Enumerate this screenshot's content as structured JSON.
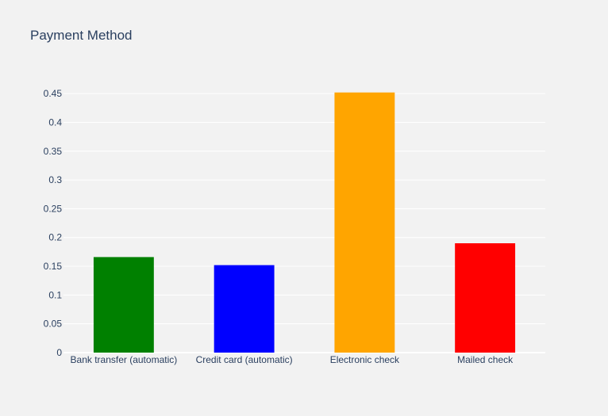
{
  "chart_data": {
    "type": "bar",
    "title": "Payment Method",
    "categories": [
      "Bank transfer (automatic)",
      "Credit card (automatic)",
      "Electronic check",
      "Mailed check"
    ],
    "values": [
      0.166,
      0.152,
      0.452,
      0.19
    ],
    "colors": [
      "#008000",
      "#0000ff",
      "#ffa500",
      "#ff0000"
    ],
    "xlabel": "",
    "ylabel": "",
    "ylim": [
      0,
      0.475
    ],
    "yticks": [
      0,
      0.05,
      0.1,
      0.15,
      0.2,
      0.25,
      0.3,
      0.35,
      0.4,
      0.45
    ],
    "ytick_labels": [
      "0",
      "0.05",
      "0.1",
      "0.15",
      "0.2",
      "0.25",
      "0.3",
      "0.35",
      "0.4",
      "0.45"
    ],
    "grid": true,
    "legend": "none"
  },
  "colors": {
    "background": "#f2f2f2",
    "grid": "#ffffff",
    "text": "#2a3f5f"
  }
}
